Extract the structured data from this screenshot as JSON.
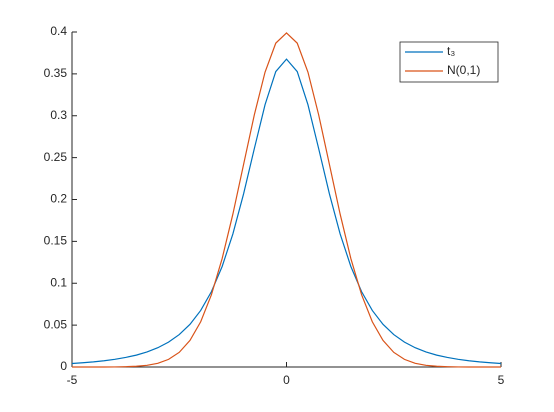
{
  "chart_data": {
    "type": "line",
    "x": [
      -5,
      -4.75,
      -4.5,
      -4.25,
      -4,
      -3.75,
      -3.5,
      -3.25,
      -3,
      -2.75,
      -2.5,
      -2.25,
      -2,
      -1.75,
      -1.5,
      -1.25,
      -1,
      -0.75,
      -0.5,
      -0.25,
      0,
      0.25,
      0.5,
      0.75,
      1,
      1.25,
      1.5,
      1.75,
      2,
      2.25,
      2.5,
      2.75,
      3,
      3.25,
      3.5,
      3.75,
      4,
      4.25,
      4.5,
      4.75,
      5
    ],
    "series": [
      {
        "name": "t₃",
        "color": "#0072bd",
        "values": [
          0.0042,
          0.0051,
          0.0061,
          0.0075,
          0.0092,
          0.0114,
          0.0142,
          0.018,
          0.023,
          0.0297,
          0.0387,
          0.0509,
          0.0675,
          0.09,
          0.12,
          0.1589,
          0.2068,
          0.2607,
          0.3132,
          0.3527,
          0.3676,
          0.3527,
          0.3132,
          0.2607,
          0.2068,
          0.1589,
          0.12,
          0.09,
          0.0675,
          0.0509,
          0.0387,
          0.0297,
          0.023,
          0.018,
          0.0142,
          0.0114,
          0.0092,
          0.0075,
          0.0061,
          0.0051,
          0.0042
        ]
      },
      {
        "name": "N(0,1)",
        "color": "#d95319",
        "values": [
          0,
          0,
          0,
          0,
          0.0001,
          0.0004,
          0.0009,
          0.002,
          0.0044,
          0.0091,
          0.0175,
          0.0317,
          0.054,
          0.0863,
          0.1295,
          0.1826,
          0.242,
          0.3011,
          0.3521,
          0.3867,
          0.3989,
          0.3867,
          0.3521,
          0.3011,
          0.242,
          0.1826,
          0.1295,
          0.0863,
          0.054,
          0.0317,
          0.0175,
          0.0091,
          0.0044,
          0.002,
          0.0009,
          0.0004,
          0.0001,
          0,
          0,
          0,
          0
        ]
      }
    ],
    "xlim": [
      -5,
      5
    ],
    "xticks": [
      -5,
      0,
      5
    ],
    "ylim": [
      0,
      0.4
    ],
    "yticks": [
      0,
      0.05,
      0.1,
      0.15,
      0.2,
      0.25,
      0.3,
      0.35,
      0.4
    ],
    "legend": "upper-right"
  }
}
